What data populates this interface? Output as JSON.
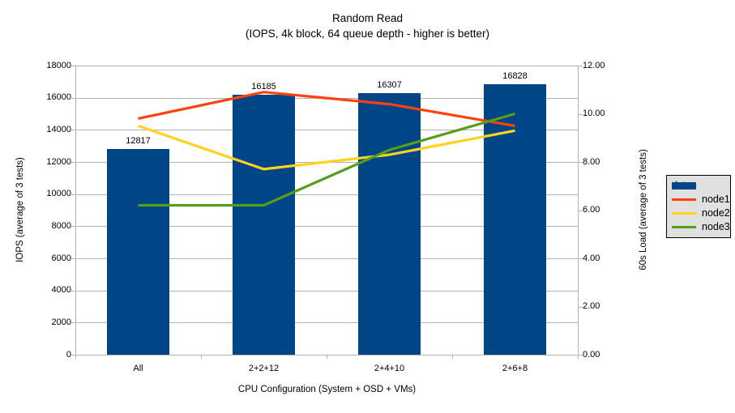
{
  "chart_data": {
    "type": "bar",
    "title": "Random Read",
    "subtitle": "(IOPS, 4k block, 64 queue depth - higher is better)",
    "xlabel": "CPU Configuration (System + OSD + VMs)",
    "ylabel_left": "IOPS (average of 3 tests)",
    "ylabel_right": "60s Load (average of 3 tests)",
    "categories": [
      "All",
      "2+2+12",
      "2+4+10",
      "2+6+8"
    ],
    "series": [
      {
        "name": "data",
        "kind": "bar",
        "axis": "left",
        "color": "#004586",
        "values": [
          12817,
          16185,
          16307,
          16828
        ],
        "labels": [
          "12817",
          "16185",
          "16307",
          "16828"
        ]
      },
      {
        "name": "node1",
        "kind": "line",
        "axis": "right",
        "color": "#ff420e",
        "values": [
          9.8,
          10.9,
          10.4,
          9.5
        ]
      },
      {
        "name": "node2",
        "kind": "line",
        "axis": "right",
        "color": "#ffd320",
        "values": [
          9.5,
          7.7,
          8.3,
          9.3
        ]
      },
      {
        "name": "node3",
        "kind": "line",
        "axis": "right",
        "color": "#579d1c",
        "values": [
          6.2,
          6.2,
          8.5,
          10.0
        ]
      }
    ],
    "ylim_left": [
      0,
      18000
    ],
    "ylim_right": [
      0,
      12
    ],
    "yticks_left": [
      "18000",
      "16000",
      "14000",
      "12000",
      "10000",
      "8000",
      "6000",
      "4000",
      "2000",
      "0"
    ],
    "yticks_right": [
      "12.00",
      "10.00",
      "8.00",
      "6.00",
      "4.00",
      "2.00",
      "0.00"
    ],
    "grid": true,
    "legend_position": "right",
    "legend": [
      "data",
      "node1",
      "node2",
      "node3"
    ]
  },
  "palette": {
    "grid": "#b3b3b3",
    "legend_bg": "#e0e0e0",
    "legend_border": "#000000",
    "text": "#000000"
  }
}
